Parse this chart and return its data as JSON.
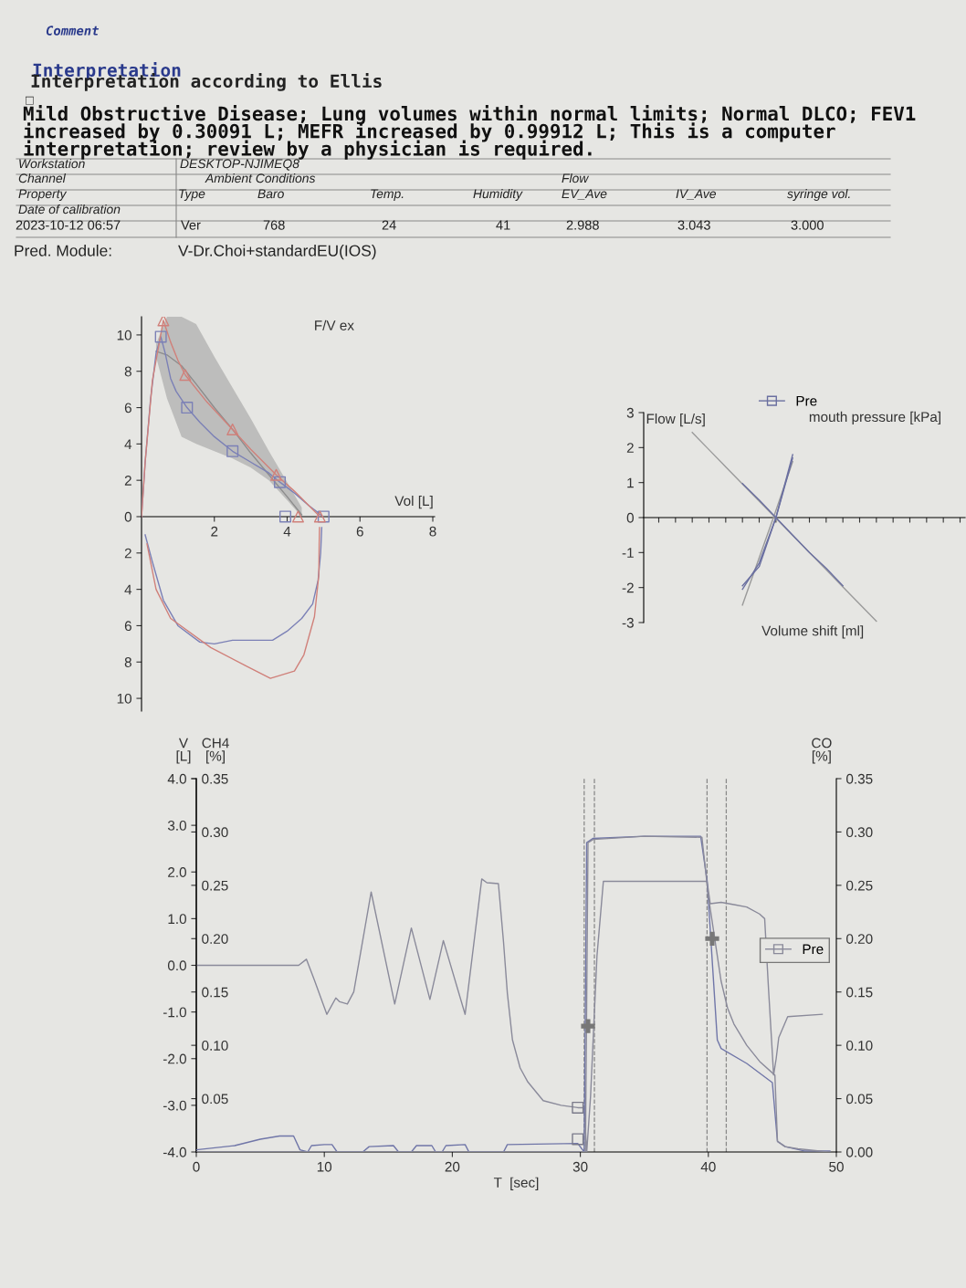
{
  "chart_data": [
    {
      "type": "other",
      "annotations": [
        "Comment",
        "Interpretation",
        "Interpretation according to Ellis",
        "□",
        "Mild Obstructive Disease; Lung volumes within normal limits; Normal DLCO; FEV1\nincreased by 0.30091 L; MEFR increased by 0.99912 L; This is a computer\ninterpretation; review by a physician is required.",
        "Workstation",
        "DESKTOP-NJIMEQ8",
        "Channel",
        "Ambient Conditions",
        "Flow",
        "Property",
        "Type",
        "Baro",
        "Temp.",
        "Humidity",
        "EV_Ave",
        "IV_Ave",
        "syringe vol.",
        "Date of calibration",
        "2023-10-12 06:57",
        "Ver",
        "768",
        "24",
        "41",
        "2.988",
        "3.043",
        "3.000",
        "Pred. Module:",
        "V-Dr.Choi+standardEU(IOS)"
      ]
    },
    {
      "type": "line",
      "title": "F/V ex",
      "xlabel": "Vol [L]",
      "xlim": [
        0,
        8.05
      ],
      "ylim": [
        -10.7,
        11
      ],
      "xticks": [
        2,
        4,
        6,
        8
      ],
      "yticks": [
        10,
        8,
        6,
        4,
        2,
        0,
        {
          "value": -2,
          "label": "2"
        },
        {
          "value": -4,
          "label": "4"
        },
        {
          "value": -6,
          "label": "6"
        },
        {
          "value": -8,
          "label": "8"
        },
        {
          "value": -10,
          "label": "10"
        }
      ],
      "series": [
        {
          "type": "line",
          "color": "#8c8c8c",
          "x": [
            0.4,
            0.7,
            1.1,
            1.5,
            2.0,
            2.5,
            3.0,
            3.5,
            4.0,
            4.4
          ],
          "values": [
            9.1,
            8.9,
            8.3,
            7.3,
            6.0,
            4.8,
            3.5,
            2.3,
            1.1,
            0.1
          ],
          "lower": [
            8.8,
            6.5,
            4.4,
            4.0,
            3.6,
            3.2,
            2.7,
            2.0,
            0.9,
            0.0
          ],
          "upper": [
            9.5,
            11,
            11,
            10.6,
            8.8,
            7.1,
            5.4,
            3.6,
            1.9,
            0.5
          ]
        },
        {
          "type": "line",
          "color": "#7b80b6",
          "x": [
            0,
            0.1,
            0.25,
            0.4,
            0.53,
            0.65,
            0.8,
            0.95,
            1.25,
            1.6,
            2.0,
            2.5,
            3.0,
            3.5,
            3.8,
            4.2,
            4.6,
            4.8,
            4.98
          ],
          "values": [
            0,
            3,
            6.5,
            9,
            9.9,
            9.0,
            7.6,
            6.9,
            6.0,
            5.2,
            4.4,
            3.6,
            3.0,
            2.4,
            1.9,
            1.3,
            0.6,
            0.3,
            0
          ]
        },
        {
          "type": "line",
          "color": "#7b80b6",
          "x": [
            4.95,
            4.92,
            4.85,
            4.7,
            4.4,
            4.0,
            3.6,
            3.0,
            2.5,
            2.0,
            1.6,
            1.0,
            0.6,
            0.3,
            0.1
          ],
          "values": [
            -0.6,
            -2,
            -3.5,
            -4.8,
            -5.6,
            -6.3,
            -6.8,
            -6.8,
            -6.8,
            -7.0,
            -6.9,
            -6.0,
            -4.6,
            -2.5,
            -1.0
          ]
        },
        {
          "type": "line",
          "color": "#d0807a",
          "x": [
            0,
            0.1,
            0.3,
            0.6,
            0.8,
            1.0,
            1.2,
            1.8,
            2.5,
            3.0,
            3.7,
            4.2,
            4.6,
            4.85,
            4.9
          ],
          "values": [
            0,
            3,
            7.5,
            10.8,
            9.6,
            8.6,
            7.8,
            6.3,
            4.8,
            3.7,
            2.3,
            1.4,
            0.6,
            0.1,
            0
          ]
        },
        {
          "type": "line",
          "color": "#d0807a",
          "x": [
            4.89,
            4.88,
            4.87,
            4.75,
            4.46,
            4.2,
            3.54,
            2.9,
            1.9,
            0.8,
            0.4,
            0.15
          ],
          "values": [
            -0.6,
            -1.5,
            -3.2,
            -5.5,
            -7.6,
            -8.5,
            -8.9,
            -8.25,
            -7.2,
            -5.6,
            -4.0,
            -1.5
          ]
        },
        {
          "type": "scatter",
          "marker": "square",
          "color": "#7b80b6",
          "x": [
            0.53,
            1.25,
            2.5,
            3.8,
            3.95,
            5.0
          ],
          "values": [
            9.9,
            6.0,
            3.6,
            1.9,
            0,
            0
          ]
        },
        {
          "type": "scatter",
          "marker": "triangle",
          "color": "#d0807a",
          "x": [
            0.6,
            1.2,
            2.5,
            3.7,
            4.3,
            4.9
          ],
          "values": [
            10.8,
            7.8,
            4.8,
            2.3,
            0,
            0
          ]
        }
      ]
    },
    {
      "type": "line",
      "xlabel": "Volume shift [ml]",
      "ylabel": "Flow [L/s]",
      "annotations": [
        "mouth pressure [kPa]"
      ],
      "legend": "top",
      "tick_labels": "y",
      "ylim": [
        -3,
        3
      ],
      "yticks": [
        -3,
        -2,
        -1,
        0,
        1,
        2,
        3
      ],
      "categories": [
        null,
        null,
        null,
        null,
        null,
        null,
        null,
        null,
        null,
        null,
        null,
        null,
        null,
        null,
        null,
        null,
        null,
        null,
        null
      ],
      "series": [
        {
          "type": "line",
          "color": "#9a9a9a",
          "values": [
            null,
            null,
            null,
            null,
            null,
            -2.5,
            -1.15,
            0.2,
            1.6,
            null,
            null,
            null,
            null,
            null,
            null,
            null,
            null,
            null,
            null
          ]
        },
        {
          "type": "line",
          "color": "#9a9a9a",
          "values": [
            null,
            null,
            2.43,
            1.94,
            1.45,
            0.96,
            0.47,
            -0.02,
            -0.51,
            -1.0,
            -1.49,
            -1.98,
            -2.47,
            -2.96,
            null,
            null,
            null,
            null,
            null
          ]
        },
        {
          "type": "line",
          "name": "Pre",
          "color": "#6a6fa0",
          "values": [
            null,
            null,
            null,
            null,
            null,
            -2.05,
            -1.3,
            0,
            1.7,
            null,
            null,
            null,
            null,
            null,
            null,
            null,
            null,
            null,
            null
          ]
        },
        {
          "type": "line",
          "color": "#6a6fa0",
          "values": [
            null,
            null,
            null,
            null,
            null,
            -1.95,
            -1.4,
            0,
            1.8,
            null,
            null,
            null,
            null,
            null,
            null,
            null,
            null,
            null,
            null
          ]
        },
        {
          "type": "line",
          "color": "#6a6fa0",
          "values": [
            null,
            null,
            null,
            null,
            null,
            0.97,
            0.5,
            0,
            -0.5,
            -1.0,
            -1.45,
            -1.95,
            null,
            null,
            null,
            null,
            null,
            null,
            null
          ]
        }
      ]
    },
    {
      "type": "line",
      "xlabel": "T  [sec]",
      "ylabel": "V\n[L]",
      "y2label": "CH4\n[%]",
      "y3label": "CO\n[%]",
      "legend": "right",
      "xlim": [
        0,
        50
      ],
      "xticks": [
        0,
        10,
        20,
        30,
        40,
        50
      ],
      "ylim": [
        -4,
        4
      ],
      "yticks": [
        {
          "value": 4,
          "label": "4.0"
        },
        {
          "value": 3,
          "label": "3.0"
        },
        {
          "value": 2,
          "label": "2.0"
        },
        {
          "value": 1,
          "label": "1.0"
        },
        {
          "value": 0,
          "label": "0.0"
        },
        {
          "value": -1,
          "label": "-1.0"
        },
        {
          "value": -2,
          "label": "-2.0"
        },
        {
          "value": -3,
          "label": "-3.0"
        },
        {
          "value": -4,
          "label": "-4.0"
        }
      ],
      "y2lim": [
        0,
        0.35
      ],
      "y2ticks": [
        0.35,
        {
          "value": 0.3,
          "label": "0.30"
        },
        0.25,
        {
          "value": 0.2,
          "label": "0.20"
        },
        0.15,
        {
          "value": 0.1,
          "label": "0.10"
        },
        0.05
      ],
      "y3lim": [
        0,
        0.35
      ],
      "y3ticks": [
        0.35,
        {
          "value": 0.3,
          "label": "0.30"
        },
        0.25,
        {
          "value": 0.2,
          "label": "0.20"
        },
        0.15,
        {
          "value": 0.1,
          "label": "0.10"
        },
        0.05,
        {
          "value": 0,
          "label": "0.00"
        }
      ],
      "ref_lines": [
        {
          "axis": "x",
          "value": 30.3,
          "color": "#888888",
          "line_style": "dashed"
        },
        {
          "axis": "x",
          "value": 31.1,
          "color": "#888888",
          "line_style": "dashed"
        },
        {
          "axis": "x",
          "value": 39.9,
          "color": "#888888",
          "line_style": "dashed"
        },
        {
          "axis": "x",
          "value": 41.4,
          "color": "#888888",
          "line_style": "dashed"
        }
      ],
      "series": [
        {
          "type": "line",
          "name": "Pre",
          "color": "#8a8a9a",
          "x": [
            0,
            8.0,
            8.6,
            9.2,
            10.2,
            10.9,
            11.2,
            11.8,
            12.3,
            13.66,
            15.5,
            16.8,
            18.25,
            19.3,
            21.0,
            22.3,
            22.7,
            23.6,
            24.0,
            24.3,
            24.7,
            25.3,
            25.9,
            27.1,
            28.5,
            29.8,
            30.3,
            30.5,
            30.8,
            31.3,
            31.8,
            35.0,
            39.9,
            40.15,
            41.0,
            42,
            43,
            44,
            44.4,
            44.7,
            45.1,
            45.3,
            45.5,
            46.2,
            48.9
          ],
          "values": [
            0,
            0,
            0.13,
            -0.3,
            -1.05,
            -0.7,
            -0.78,
            -0.83,
            -0.57,
            1.57,
            -0.83,
            0.8,
            -0.73,
            0.53,
            -1.05,
            1.85,
            1.77,
            1.75,
            0.5,
            -0.6,
            -1.6,
            -2.2,
            -2.5,
            -2.9,
            -3.0,
            -3.05,
            -3.05,
            -4.0,
            -2.8,
            0.2,
            1.8,
            1.8,
            1.8,
            1.32,
            1.35,
            1.3,
            1.25,
            1.1,
            1.0,
            -0.5,
            -2.35,
            -2.0,
            -1.55,
            -1.1,
            -1.05
          ]
        },
        {
          "type": "line",
          "axis": "y2",
          "color": "#7076a8",
          "x": [
            0,
            3,
            5,
            6.5,
            7.6,
            8.1,
            8.7,
            9.0,
            10.0,
            10.6,
            11.0,
            13.0,
            13.5,
            15.4,
            15.8,
            16.8,
            17.2,
            18.4,
            18.7,
            19.2,
            19.5,
            21.0,
            21.3,
            24.0,
            24.3,
            29.8,
            30.3,
            30.5,
            31.0,
            35.0,
            39.4,
            39.9,
            40.3,
            40.7,
            41.0,
            43.0,
            45.0,
            45.4,
            46.0,
            47.5,
            49.5
          ],
          "values": [
            0.002,
            0.006,
            0.012,
            0.015,
            0.015,
            0.002,
            0.0,
            0.006,
            0.007,
            0.007,
            0.0,
            0.0,
            0.005,
            0.006,
            0.0,
            0.0,
            0.006,
            0.006,
            0.0,
            0.0,
            0.006,
            0.007,
            0.0,
            0.0,
            0.007,
            0.008,
            0.0,
            0.29,
            0.294,
            0.296,
            0.296,
            0.255,
            0.18,
            0.105,
            0.097,
            0.083,
            0.065,
            0.01,
            0.005,
            0.001,
            0.001
          ]
        },
        {
          "type": "line",
          "axis": "y3",
          "color": "#8a8a9a",
          "x": [
            0,
            30.4,
            30.6,
            31.0,
            35.0,
            39.5,
            40.0,
            40.5,
            41.0,
            41.5,
            42.0,
            43.0,
            44.0,
            45.2,
            45.4,
            46.0,
            47.0,
            49.5
          ],
          "values": [
            0,
            0,
            0.29,
            0.293,
            0.296,
            0.295,
            0.24,
            0.2,
            0.16,
            0.135,
            0.12,
            0.1,
            0.085,
            0.072,
            0.01,
            0.005,
            0.003,
            0.0
          ]
        },
        {
          "type": "scatter",
          "marker": "square",
          "color": "#7a7a8a",
          "x": [
            29.8
          ],
          "values": [
            -3.05
          ]
        },
        {
          "type": "scatter",
          "marker": "square",
          "axis": "y2",
          "color": "#7a7a8a",
          "x": [
            29.8
          ],
          "values": [
            0.012
          ]
        },
        {
          "type": "scatter",
          "marker": "cross",
          "axis": "y3",
          "color": "#777777",
          "x": [
            30.6,
            40.3
          ],
          "values": [
            0.118,
            0.2
          ]
        }
      ]
    }
  ]
}
